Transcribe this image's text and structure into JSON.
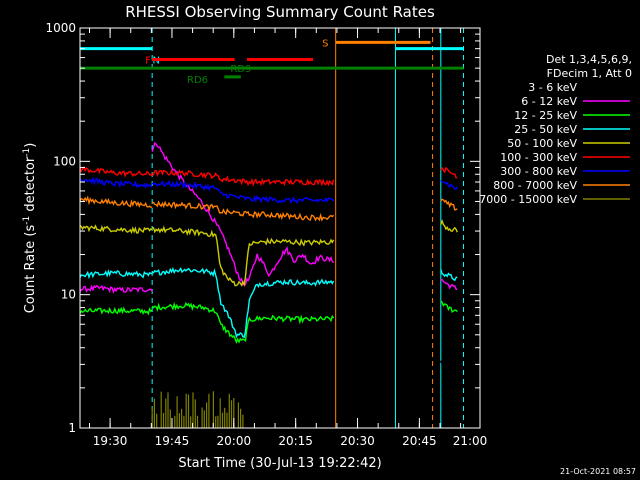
{
  "chart_data": {
    "type": "line",
    "title": "RHESSI Observing Summary Count Rates",
    "xlabel": "Start Time (30-Jul-13 19:22:42)",
    "ylabel_main": "Count Rate (s",
    "ylabel_sup1": "-1",
    "ylabel_mid": " detector",
    "ylabel_sup2": "-1",
    "ylabel_end": ")",
    "y_scale": "log",
    "ylim": [
      1,
      1000
    ],
    "xlim_minutes": [
      0,
      97
    ],
    "x_ticks": [
      {
        "minute": 7.3,
        "label": "19:30"
      },
      {
        "minute": 22.3,
        "label": "19:45"
      },
      {
        "minute": 37.3,
        "label": "20:00"
      },
      {
        "minute": 52.3,
        "label": "20:15"
      },
      {
        "minute": 67.3,
        "label": "20:30"
      },
      {
        "minute": 82.3,
        "label": "20:45"
      },
      {
        "minute": 97.3,
        "label": "21:00"
      }
    ],
    "y_ticks": [
      {
        "value": 1,
        "label": "1"
      },
      {
        "value": 10,
        "label": "10"
      },
      {
        "value": 100,
        "label": "100"
      },
      {
        "value": 1000,
        "label": "1000"
      }
    ],
    "legend": {
      "header1": "Det 1,3,4,5,6,9,",
      "header2": "FDecim 1, Att 0",
      "entries": [
        {
          "label": "3 - 6 keV",
          "color": "#000000"
        },
        {
          "label": "6 - 12 keV",
          "color": "#ff00ff"
        },
        {
          "label": "12 - 25 keV",
          "color": "#00ff00"
        },
        {
          "label": "25 - 50 keV",
          "color": "#00ffff"
        },
        {
          "label": "50 - 100 keV",
          "color": "#cccc00"
        },
        {
          "label": "100 - 300 keV",
          "color": "#ff0000"
        },
        {
          "label": "300 - 800 keV",
          "color": "#0000ff"
        },
        {
          "label": "800 - 7000 keV",
          "color": "#ff8000"
        },
        {
          "label": "7000 - 15000 keV",
          "color": "#808000"
        }
      ]
    },
    "series": [
      {
        "name": "3 - 6 keV",
        "color": "#000000",
        "segments": [
          [
            [
              0,
              3
            ],
            [
              3,
              2.6
            ],
            [
              6,
              3
            ],
            [
              9,
              2.5
            ],
            [
              12,
              3
            ],
            [
              15,
              2.8
            ],
            [
              17.5,
              3
            ]
          ],
          [
            [
              17.5,
              100
            ],
            [
              19,
              115
            ],
            [
              22,
              80
            ],
            [
              25,
              70
            ],
            [
              28,
              60
            ],
            [
              31,
              52
            ],
            [
              34,
              40
            ],
            [
              36,
              28
            ],
            [
              37.5,
              18
            ],
            [
              38.5,
              14
            ],
            [
              39.5,
              12
            ],
            [
              40.5,
              13
            ],
            [
              42,
              16
            ],
            [
              44,
              18
            ],
            [
              46,
              17
            ],
            [
              48,
              20
            ],
            [
              50,
              21
            ],
            [
              52,
              19
            ],
            [
              54,
              20
            ],
            [
              56,
              18
            ],
            [
              58,
              20
            ],
            [
              60,
              21
            ],
            [
              61.5,
              20
            ]
          ],
          [
            [
              87.5,
              3
            ],
            [
              89,
              2.5
            ],
            [
              90,
              3
            ],
            [
              91.5,
              2.8
            ]
          ]
        ]
      },
      {
        "name": "6 - 12 keV",
        "color": "#ff00ff",
        "segments": [
          [
            [
              0,
              11
            ],
            [
              5,
              11.2
            ],
            [
              10,
              10.8
            ],
            [
              17.5,
              11
            ]
          ],
          [
            [
              17.5,
              120
            ],
            [
              18.5,
              140
            ],
            [
              20,
              115
            ],
            [
              23,
              85
            ],
            [
              26,
              65
            ],
            [
              29,
              52
            ],
            [
              32,
              38
            ],
            [
              34,
              30
            ],
            [
              36,
              22
            ],
            [
              38,
              15
            ],
            [
              39.5,
              12
            ],
            [
              41,
              13
            ],
            [
              43,
              20
            ],
            [
              44.5,
              17
            ],
            [
              46,
              14
            ],
            [
              48,
              18
            ],
            [
              50,
              22
            ],
            [
              52,
              18
            ],
            [
              54,
              20
            ],
            [
              56,
              17
            ],
            [
              58,
              19
            ],
            [
              61.5,
              18
            ]
          ],
          [
            [
              87.5,
              13
            ],
            [
              89,
              12
            ],
            [
              91.5,
              11
            ]
          ]
        ]
      },
      {
        "name": "12 - 25 keV",
        "color": "#00ff00",
        "segments": [
          [
            [
              0,
              7.5
            ],
            [
              8,
              7.6
            ],
            [
              17.5,
              7.5
            ]
          ],
          [
            [
              17.5,
              8
            ],
            [
              25,
              8.3
            ],
            [
              30,
              8
            ],
            [
              33,
              7.5
            ],
            [
              34,
              6
            ],
            [
              36,
              5.2
            ],
            [
              38,
              4.5
            ],
            [
              40,
              4.5
            ],
            [
              41,
              6.5
            ],
            [
              45,
              6.7
            ],
            [
              50,
              6.6
            ],
            [
              55,
              6.5
            ],
            [
              61.5,
              6.6
            ]
          ],
          [
            [
              87.5,
              9
            ],
            [
              89,
              8
            ],
            [
              91.5,
              7.5
            ]
          ]
        ]
      },
      {
        "name": "25 - 50 keV",
        "color": "#00ffff",
        "segments": [
          [
            [
              0,
              14
            ],
            [
              8,
              14.5
            ],
            [
              17.5,
              14
            ]
          ],
          [
            [
              17.5,
              14.5
            ],
            [
              25,
              15.5
            ],
            [
              30,
              15
            ],
            [
              33,
              14.5
            ],
            [
              34,
              9
            ],
            [
              36,
              7
            ],
            [
              38,
              5
            ],
            [
              40,
              5
            ],
            [
              41,
              9
            ],
            [
              43,
              12
            ],
            [
              50,
              12.5
            ],
            [
              55,
              12.2
            ],
            [
              61.5,
              12.5
            ]
          ],
          [
            [
              87.5,
              15
            ],
            [
              89,
              14
            ],
            [
              91.5,
              13
            ]
          ]
        ]
      },
      {
        "name": "50 - 100 keV",
        "color": "#cccc00",
        "segments": [
          [
            [
              0,
              32
            ],
            [
              8,
              31
            ],
            [
              17.5,
              30
            ]
          ],
          [
            [
              17.5,
              31
            ],
            [
              25,
              30
            ],
            [
              30,
              29
            ],
            [
              33,
              28
            ],
            [
              34,
              16
            ],
            [
              36,
              13
            ],
            [
              38,
              12
            ],
            [
              40,
              12.5
            ],
            [
              41,
              24
            ],
            [
              45,
              25
            ],
            [
              50,
              25
            ],
            [
              55,
              24.5
            ],
            [
              61.5,
              25
            ]
          ],
          [
            [
              87.5,
              35
            ],
            [
              89,
              32
            ],
            [
              91.5,
              30
            ]
          ]
        ]
      },
      {
        "name": "100 - 300 keV",
        "color": "#ff0000",
        "segments": [
          [
            [
              0,
              88
            ],
            [
              8,
              82
            ],
            [
              17.5,
              80
            ]
          ],
          [
            [
              17.5,
              82
            ],
            [
              25,
              82
            ],
            [
              33,
              78
            ],
            [
              34,
              74
            ],
            [
              38,
              72
            ],
            [
              41,
              70
            ],
            [
              45,
              70
            ],
            [
              50,
              70
            ],
            [
              55,
              70
            ],
            [
              61.5,
              70
            ]
          ],
          [
            [
              87.5,
              90
            ],
            [
              89,
              85
            ],
            [
              91.5,
              78
            ]
          ]
        ]
      },
      {
        "name": "300 - 800 keV",
        "color": "#0000ff",
        "segments": [
          [
            [
              0,
              74
            ],
            [
              8,
              68
            ],
            [
              17.5,
              66
            ]
          ],
          [
            [
              17.5,
              68
            ],
            [
              25,
              67
            ],
            [
              33,
              63
            ],
            [
              34,
              57
            ],
            [
              38,
              54
            ],
            [
              41,
              52
            ],
            [
              45,
              52
            ],
            [
              50,
              51
            ],
            [
              55,
              51
            ],
            [
              61.5,
              51
            ]
          ],
          [
            [
              87.5,
              75
            ],
            [
              89,
              68
            ],
            [
              91.5,
              62
            ]
          ]
        ]
      },
      {
        "name": "800 - 7000 keV",
        "color": "#ff8000",
        "segments": [
          [
            [
              0,
              52
            ],
            [
              8,
              49
            ],
            [
              17.5,
              47
            ]
          ],
          [
            [
              17.5,
              48
            ],
            [
              25,
              47
            ],
            [
              33,
              45
            ],
            [
              34,
              42
            ],
            [
              38,
              41
            ],
            [
              41,
              40
            ],
            [
              45,
              40
            ],
            [
              50,
              39
            ],
            [
              55,
              38
            ],
            [
              61.5,
              38
            ]
          ],
          [
            [
              87.5,
              52
            ],
            [
              89,
              48
            ],
            [
              91.5,
              44
            ]
          ]
        ]
      }
    ],
    "bursts_7000_15000": {
      "color": "#808000",
      "x_start": 17.5,
      "x_end": 39.5,
      "low": 1,
      "high": 1.9
    },
    "flag_bars": [
      {
        "label": "N",
        "color": "#00ffff",
        "label_at": 18.5,
        "label_y": 580,
        "segments": [
          [
            0,
            17.5,
            700
          ],
          [
            76.5,
            93,
            700
          ]
        ]
      },
      {
        "label": "F",
        "color": "#ff0000",
        "label_at": 16.5,
        "label_y": 580,
        "segments": [
          [
            17.5,
            37.5,
            580
          ],
          [
            40.5,
            56.5,
            580
          ]
        ]
      },
      {
        "label": "RD9",
        "color": "#008000",
        "label_at": 39,
        "label_y": 500,
        "segments": [
          [
            0,
            93,
            500
          ]
        ]
      },
      {
        "label": "RD6",
        "color": "#008000",
        "label_at": 28.5,
        "label_y": 415,
        "segments": [
          [
            35,
            39,
            430
          ]
        ]
      },
      {
        "label": "S",
        "color": "#ff8000",
        "label_at": 59.5,
        "label_y": 780,
        "segments": [
          [
            62,
            85,
            780
          ]
        ]
      }
    ],
    "vertical_markers": [
      {
        "minute": 0,
        "color": "#00ffff",
        "style": "solid"
      },
      {
        "minute": 17.5,
        "color": "#00ffff",
        "style": "dashed"
      },
      {
        "minute": 62,
        "color": "#ff8000",
        "style": "solid"
      },
      {
        "minute": 76.5,
        "color": "#00ffff",
        "style": "solid"
      },
      {
        "minute": 85.5,
        "color": "#ff8000",
        "style": "dashed"
      },
      {
        "minute": 87.5,
        "color": "#00ffff",
        "style": "solid"
      },
      {
        "minute": 93,
        "color": "#00ffff",
        "style": "dashed"
      }
    ]
  },
  "timestamp": "21-Oct-2021 08:57"
}
